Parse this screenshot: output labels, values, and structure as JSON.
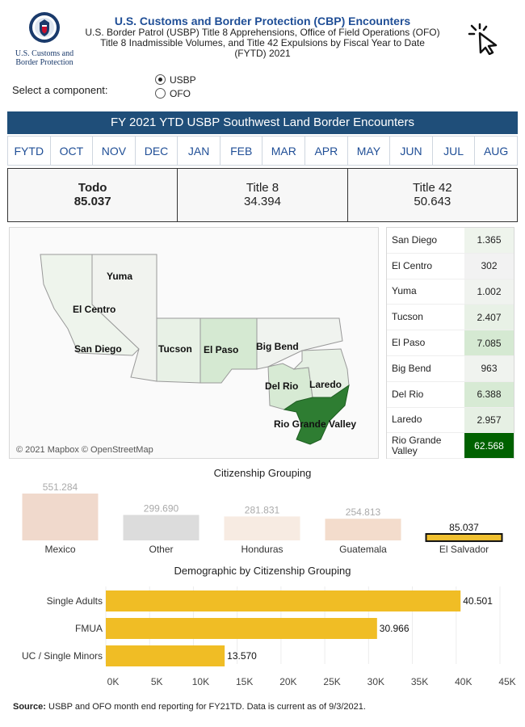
{
  "header": {
    "logo_line1": "U.S. Customs and",
    "logo_line2": "Border Protection",
    "title": "U.S. Customs and Border Protection (CBP) Encounters",
    "sub1": "U.S. Border Patrol (USBP) Title 8 Apprehensions, Office of Field Operations (OFO)",
    "sub2": "Title 8 Inadmissible Volumes, and Title 42 Expulsions by Fiscal Year to Date",
    "sub3": "(FYTD) 2021"
  },
  "component": {
    "label": "Select a component:",
    "options": [
      {
        "label": "USBP",
        "selected": true
      },
      {
        "label": "OFO",
        "selected": false
      }
    ]
  },
  "banner": "FY 2021 YTD USBP Southwest Land Border Encounters",
  "tabs": [
    "FYTD",
    "OCT",
    "NOV",
    "DEC",
    "JAN",
    "FEB",
    "MAR",
    "APR",
    "MAY",
    "JUN",
    "JUL",
    "AUG"
  ],
  "summary": [
    {
      "label": "Todo",
      "value": "85.037"
    },
    {
      "label": "Title 8",
      "value": "34.394"
    },
    {
      "label": "Title 42",
      "value": "50.643"
    }
  ],
  "map": {
    "credit": "© 2021 Mapbox © OpenStreetMap",
    "labels": {
      "yuma": "Yuma",
      "el_centro": "El Centro",
      "san_diego": "San Diego",
      "tucson": "Tucson",
      "el_paso": "El Paso",
      "big_bend": "Big Bend",
      "del_rio": "Del Rio",
      "laredo": "Laredo",
      "rgv": "Rio Grande Valley"
    }
  },
  "sectors": [
    {
      "name": "San Diego",
      "value": "1.365",
      "color": "#eef4ec"
    },
    {
      "name": "El Centro",
      "value": "302",
      "color": "#f2f2f2"
    },
    {
      "name": "Yuma",
      "value": "1.002",
      "color": "#f0f3ef"
    },
    {
      "name": "Tucson",
      "value": "2.407",
      "color": "#e8f1e6"
    },
    {
      "name": "El Paso",
      "value": "7.085",
      "color": "#d5e9d2"
    },
    {
      "name": "Big Bend",
      "value": "963",
      "color": "#f0f3ef"
    },
    {
      "name": "Del Rio",
      "value": "6.388",
      "color": "#d7ead4"
    },
    {
      "name": "Laredo",
      "value": "2.957",
      "color": "#e6f0e4"
    },
    {
      "name": "Rio Grande Valley",
      "value": "62.568",
      "color": "#006100"
    }
  ],
  "citizenship": {
    "title": "Citizenship Grouping",
    "categories": [
      "Mexico",
      "Other",
      "Honduras",
      "Guatemala",
      "El Salvador"
    ],
    "value_labels": [
      "551.284",
      "299.690",
      "281.831",
      "254.813",
      "85.037"
    ],
    "colors": [
      "#f0d9cc",
      "#dcdcdc",
      "#f7ebe2",
      "#f3dccc",
      "#f0c030"
    ]
  },
  "chart_data": [
    {
      "type": "bar",
      "title": "Citizenship Grouping",
      "categories": [
        "Mexico",
        "Other",
        "Honduras",
        "Guatemala",
        "El Salvador"
      ],
      "values": [
        551284,
        299690,
        281831,
        254813,
        85037
      ]
    },
    {
      "type": "bar",
      "orientation": "horizontal",
      "title": "Demographic by Citizenship Grouping",
      "categories": [
        "Single Adults",
        "FMUA",
        "UC / Single Minors"
      ],
      "values": [
        40501,
        30966,
        13570
      ],
      "value_labels": [
        "40.501",
        "30.966",
        "13.570"
      ],
      "xlim": [
        0,
        45000
      ],
      "ticks": [
        "0K",
        "5K",
        "10K",
        "15K",
        "20K",
        "25K",
        "30K",
        "35K",
        "40K",
        "45K"
      ],
      "color": "#f0bd25"
    }
  ],
  "source": {
    "label": "Source:",
    "text": " USBP and OFO month end reporting for FY21TD. Data is current as of 9/3/2021."
  }
}
